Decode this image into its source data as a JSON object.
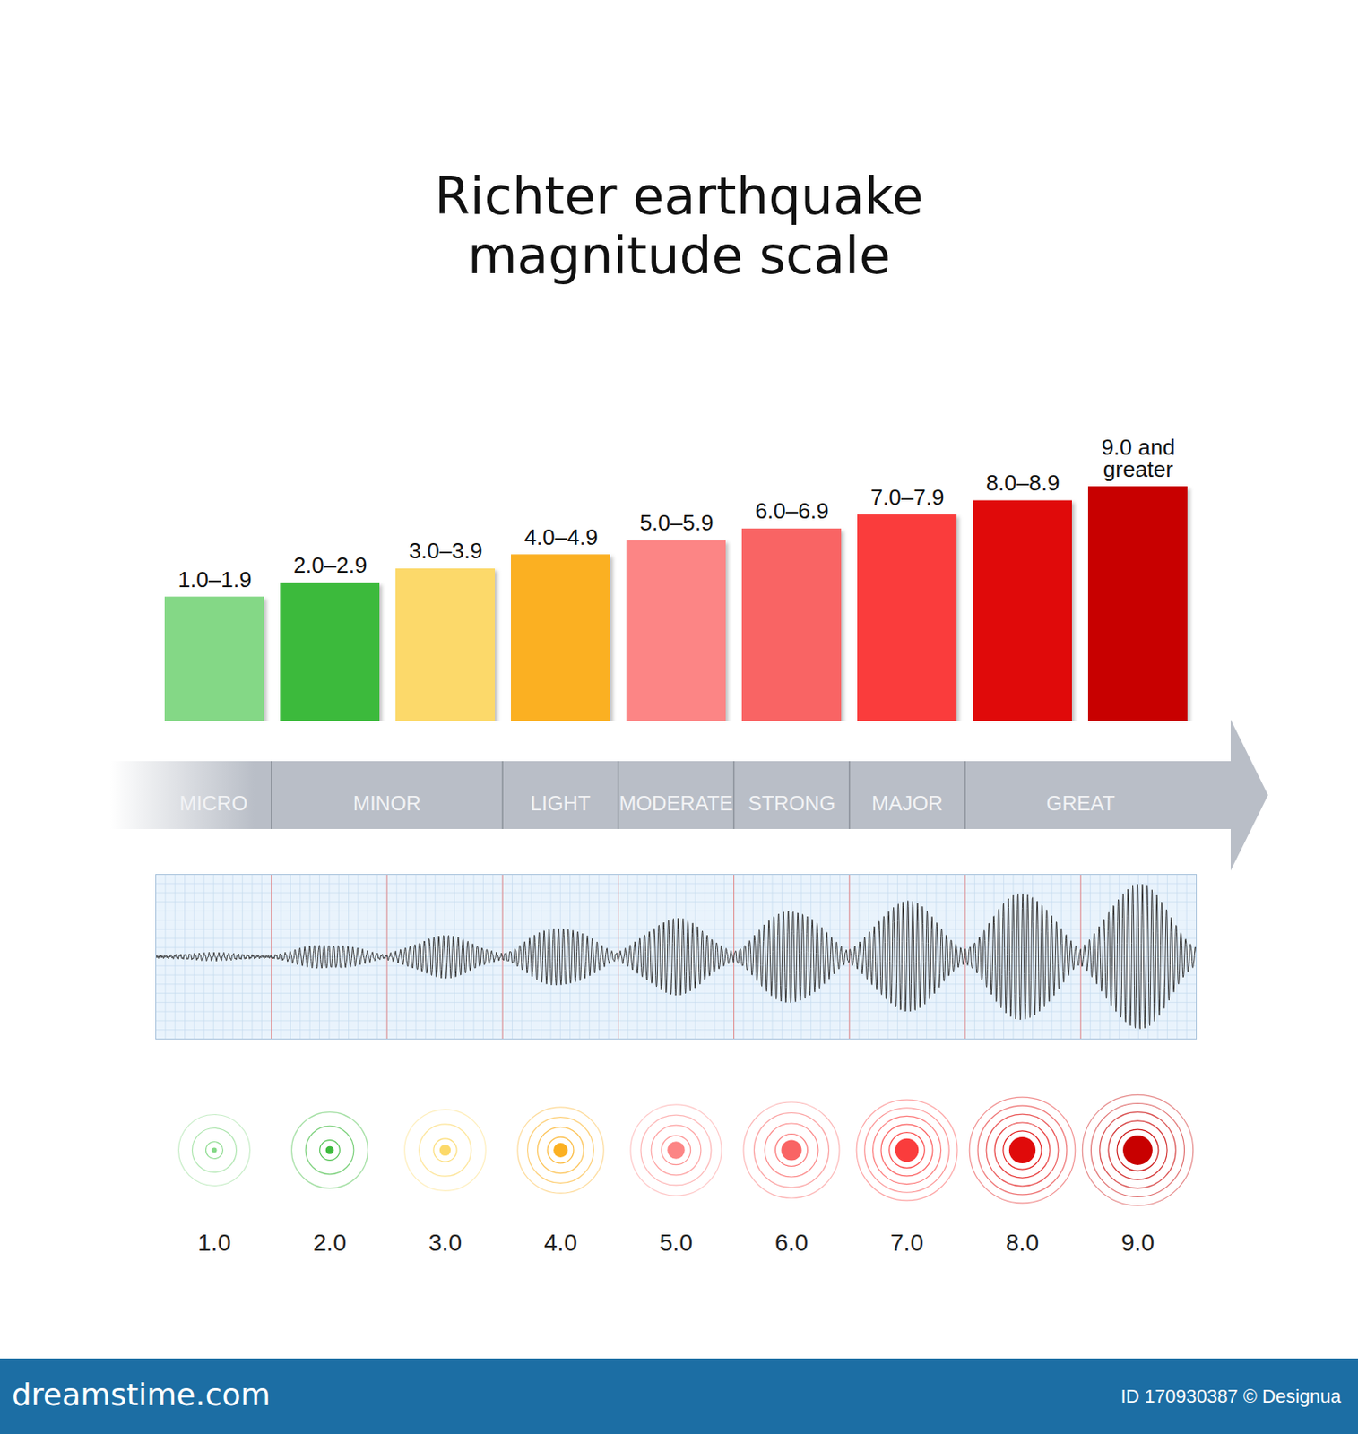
{
  "chart_data": {
    "type": "bar",
    "title": "Richter earthquake\nmagnitude scale",
    "categories": [
      "1.0–1.9",
      "2.0–2.9",
      "3.0–3.9",
      "4.0–4.9",
      "5.0–5.9",
      "6.0–6.9",
      "7.0–7.9",
      "8.0–8.9",
      "9.0 and greater"
    ],
    "values": [
      5.3,
      5.9,
      6.5,
      7.1,
      7.7,
      8.2,
      8.8,
      9.4,
      10.0
    ],
    "colors": [
      "#84d886",
      "#3cba3c",
      "#fcd96a",
      "#fbb022",
      "#fc8585",
      "#f96464",
      "#fa3c3c",
      "#e00a0a",
      "#c80000"
    ],
    "ylim": [
      0,
      10
    ],
    "yticks": [],
    "tick_labels": false,
    "classes": [
      {
        "label": "MICRO",
        "from": 1,
        "to": 2
      },
      {
        "label": "MINOR",
        "from": 2,
        "to": 4
      },
      {
        "label": "LIGHT",
        "from": 4,
        "to": 5
      },
      {
        "label": "MODERATE",
        "from": 5,
        "to": 6
      },
      {
        "label": "STRONG",
        "from": 6,
        "to": 7
      },
      {
        "label": "MAJOR",
        "from": 7,
        "to": 8
      },
      {
        "label": "GREAT",
        "from": 8,
        "to": 10
      }
    ],
    "markers": [
      {
        "value": 1,
        "label": "1.0"
      },
      {
        "value": 2,
        "label": "2.0"
      },
      {
        "value": 3,
        "label": "3.0"
      },
      {
        "value": 4,
        "label": "4.0"
      },
      {
        "value": 5,
        "label": "5.0"
      },
      {
        "value": 6,
        "label": "6.0"
      },
      {
        "value": 7,
        "label": "7.0"
      },
      {
        "value": 8,
        "label": "8.0"
      },
      {
        "value": 9,
        "label": "9.0"
      }
    ],
    "footer": {
      "left": "dreamstime.com",
      "right": "ID 170930387 © Designua"
    }
  }
}
